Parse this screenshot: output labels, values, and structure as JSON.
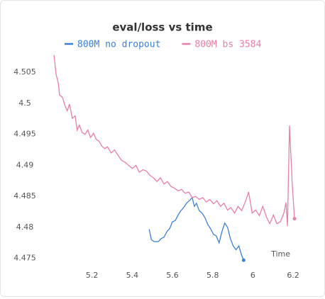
{
  "chart_data": {
    "type": "line",
    "title": "eval/loss vs time",
    "xlabel": "Time",
    "xlim": [
      5.0,
      6.228
    ],
    "ylim": [
      4.4737,
      4.508
    ],
    "xticks": [
      5.2,
      5.4,
      5.6,
      5.8,
      6,
      6.2
    ],
    "yticks": [
      4.475,
      4.48,
      4.485,
      4.49,
      4.495,
      4.5,
      4.505
    ],
    "series": [
      {
        "name": "800M no dropout",
        "color": "#3a7fd5",
        "x": [
          5.484,
          5.495,
          5.509,
          5.53,
          5.544,
          5.558,
          5.572,
          5.586,
          5.6,
          5.614,
          5.628,
          5.642,
          5.656,
          5.67,
          5.684,
          5.698,
          5.709,
          5.719,
          5.733,
          5.747,
          5.761,
          5.775,
          5.789,
          5.804,
          5.818,
          5.832,
          5.846,
          5.86,
          5.874,
          5.888,
          5.902,
          5.916,
          5.93,
          5.944,
          5.954
        ],
        "values": [
          4.4797,
          4.478,
          4.4777,
          4.4777,
          4.4782,
          4.4784,
          4.4793,
          4.4798,
          4.4809,
          4.4811,
          4.482,
          4.4827,
          4.4832,
          4.4839,
          4.4843,
          4.4848,
          4.4834,
          4.4839,
          4.4827,
          4.4823,
          4.4816,
          4.4805,
          4.4798,
          4.4789,
          4.4786,
          4.4775,
          4.4793,
          4.4807,
          4.48,
          4.4782,
          4.477,
          4.4764,
          4.477,
          4.4755,
          4.4747
        ]
      },
      {
        "name": "800M bs 3584",
        "color": "#e87ea8",
        "x": [
          5.011,
          5.021,
          5.032,
          5.039,
          5.053,
          5.067,
          5.077,
          5.088,
          5.102,
          5.116,
          5.126,
          5.137,
          5.151,
          5.165,
          5.179,
          5.193,
          5.207,
          5.221,
          5.235,
          5.249,
          5.263,
          5.277,
          5.295,
          5.312,
          5.33,
          5.347,
          5.365,
          5.382,
          5.4,
          5.418,
          5.435,
          5.453,
          5.47,
          5.488,
          5.505,
          5.523,
          5.54,
          5.558,
          5.575,
          5.593,
          5.611,
          5.628,
          5.646,
          5.663,
          5.681,
          5.698,
          5.716,
          5.733,
          5.751,
          5.768,
          5.786,
          5.804,
          5.821,
          5.839,
          5.856,
          5.874,
          5.891,
          5.909,
          5.926,
          5.944,
          5.961,
          5.979,
          5.996,
          6.014,
          6.032,
          6.049,
          6.067,
          6.084,
          6.102,
          6.119,
          6.137,
          6.154,
          6.165,
          6.172,
          6.182,
          6.196,
          6.207
        ],
        "values": [
          4.5078,
          4.5047,
          4.5033,
          4.5013,
          4.501,
          4.4995,
          4.4988,
          4.4999,
          4.4976,
          4.498,
          4.4957,
          4.4965,
          4.4953,
          4.495,
          4.4957,
          4.4945,
          4.4952,
          4.4942,
          4.4939,
          4.4931,
          4.4927,
          4.493,
          4.492,
          4.4925,
          4.4916,
          4.4908,
          4.4905,
          4.49,
          4.4895,
          4.49,
          4.4889,
          4.4893,
          4.4891,
          4.4884,
          4.488,
          4.4874,
          4.488,
          4.487,
          4.4874,
          4.4866,
          4.4863,
          4.4859,
          4.4861,
          4.4855,
          4.4857,
          4.4848,
          4.485,
          4.4845,
          4.4848,
          4.4841,
          4.4845,
          4.4838,
          4.4843,
          4.4834,
          4.4839,
          4.4828,
          4.4832,
          4.4823,
          4.4834,
          4.4827,
          4.484,
          4.4857,
          4.4823,
          4.4828,
          4.4819,
          4.4834,
          4.4817,
          4.4806,
          4.482,
          4.4806,
          4.4809,
          4.4823,
          4.484,
          4.4802,
          4.4964,
          4.4868,
          4.4814
        ]
      }
    ]
  }
}
